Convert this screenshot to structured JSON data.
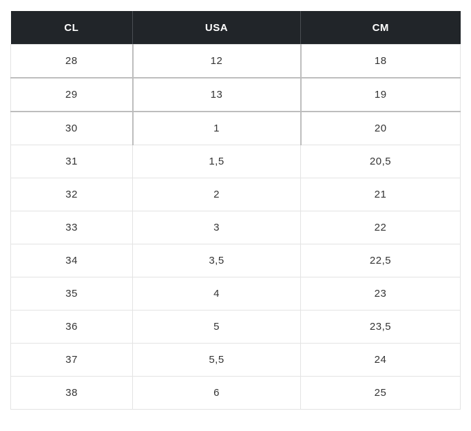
{
  "table": {
    "headers": [
      "CL",
      "USA",
      "CM"
    ],
    "rows": [
      [
        "28",
        "12",
        "18"
      ],
      [
        "29",
        "13",
        "19"
      ],
      [
        "30",
        "1",
        "20"
      ],
      [
        "31",
        "1,5",
        "20,5"
      ],
      [
        "32",
        "2",
        "21"
      ],
      [
        "33",
        "3",
        "22"
      ],
      [
        "34",
        "3,5",
        "22,5"
      ],
      [
        "35",
        "4",
        "23"
      ],
      [
        "36",
        "5",
        "23,5"
      ],
      [
        "37",
        "5,5",
        "24"
      ],
      [
        "38",
        "6",
        "25"
      ]
    ]
  },
  "colors": {
    "header_background": "#212529",
    "header_text": "#ffffff",
    "cell_text": "#333333",
    "cell_border": "#e3e3e3"
  }
}
